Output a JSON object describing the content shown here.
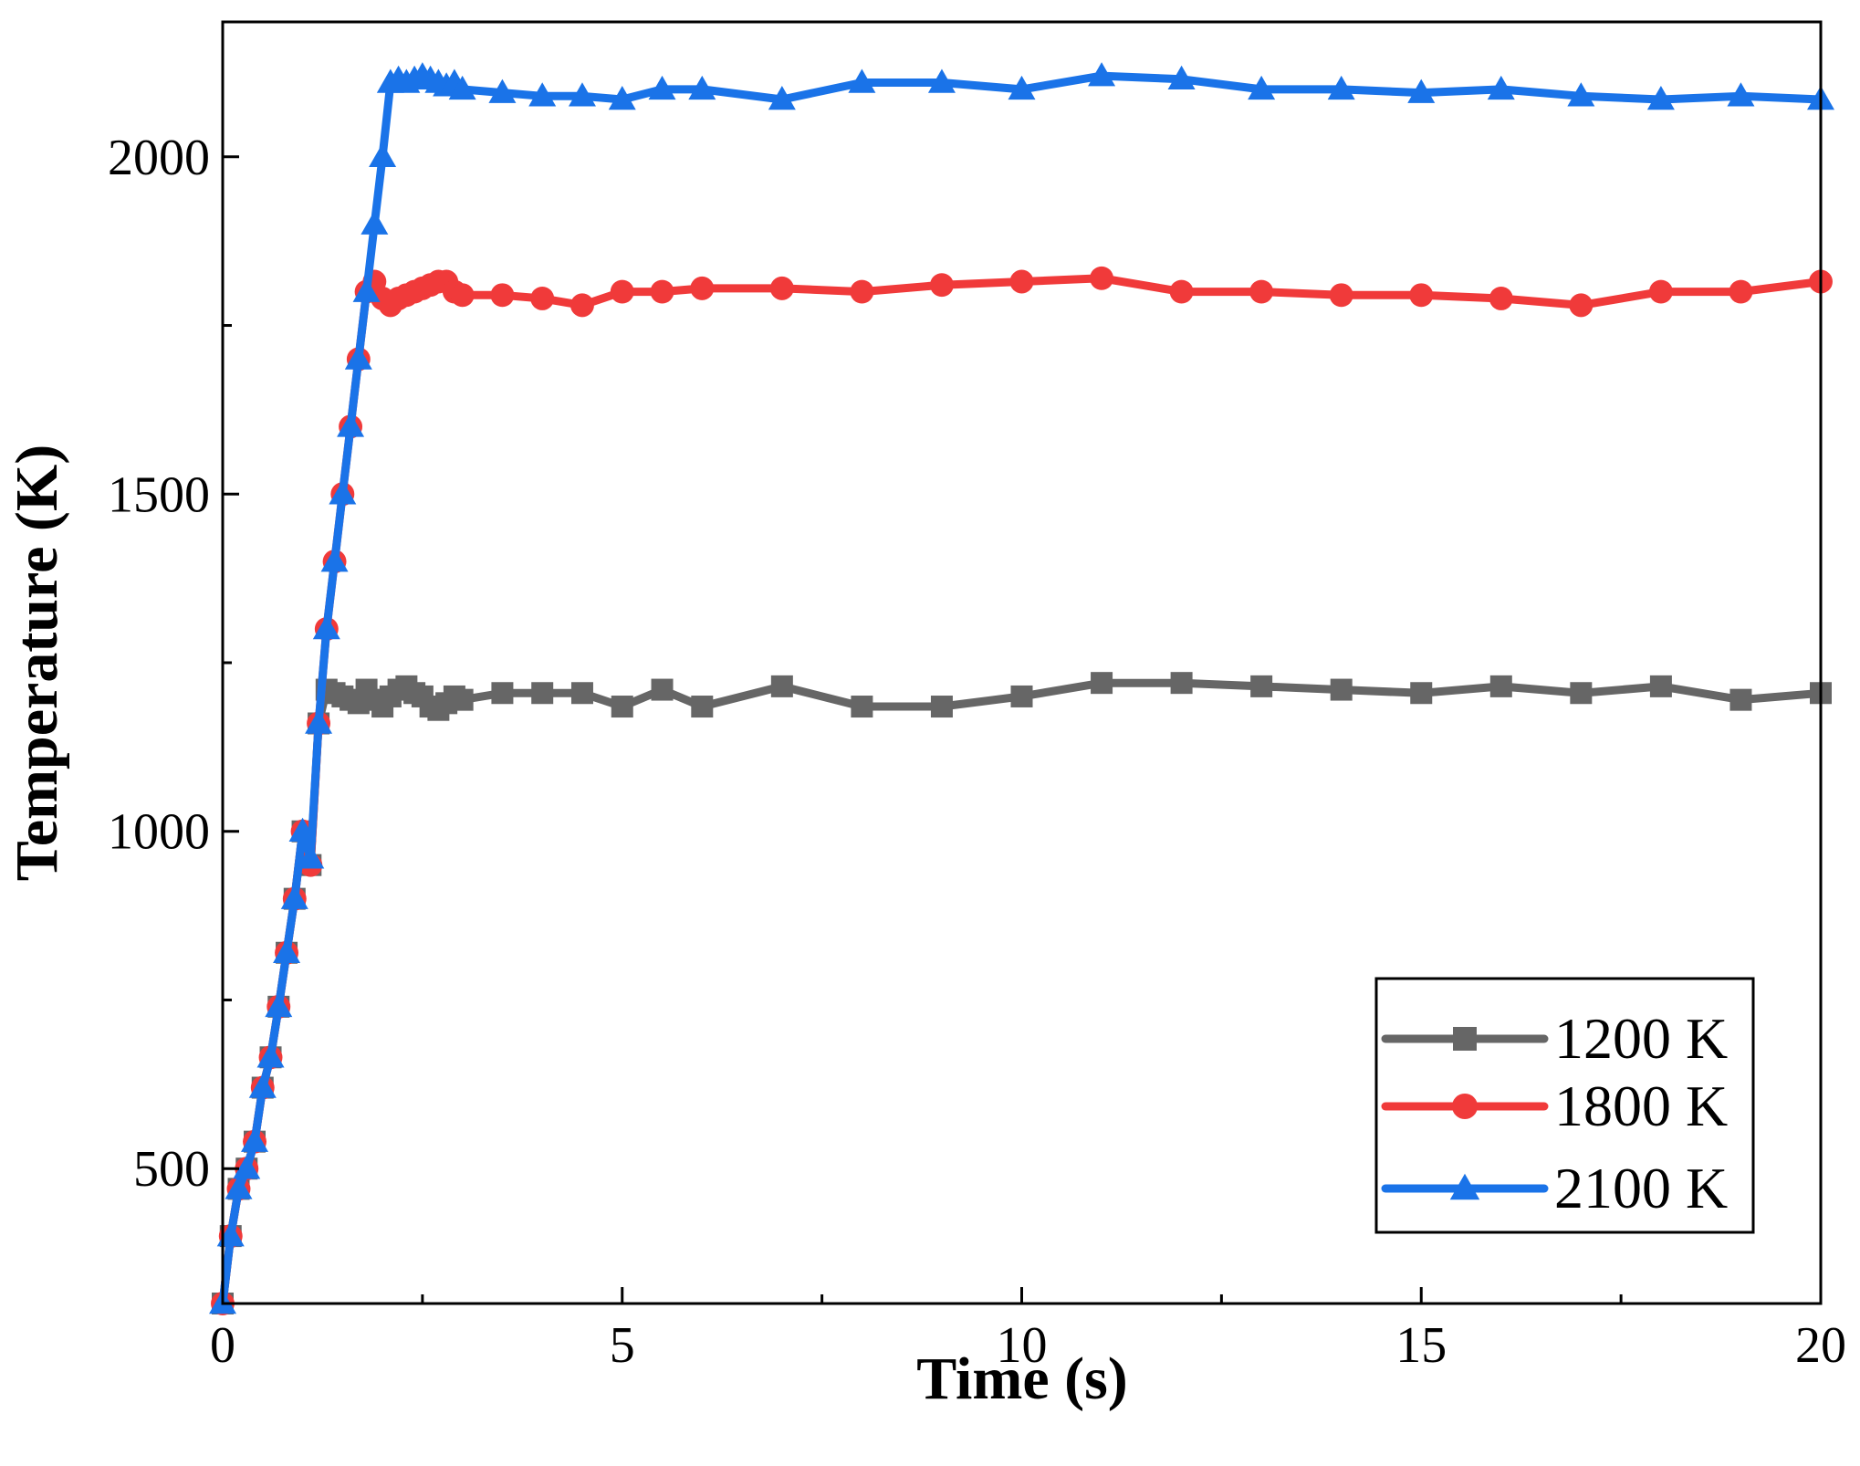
{
  "chart_data": {
    "type": "line",
    "title": "",
    "xlabel": "Time (s)",
    "ylabel": "Temperature (K)",
    "xlim": [
      0,
      20
    ],
    "ylim": [
      300,
      2200
    ],
    "xticks": [
      0,
      5,
      10,
      15,
      20
    ],
    "xtick_labels": [
      "0",
      "5",
      "10",
      "15",
      "20"
    ],
    "yticks": [
      500,
      1000,
      1500,
      2000
    ],
    "ytick_labels": [
      "500",
      "1000",
      "1500",
      "2000"
    ],
    "grid": false,
    "legend_position": "bottom-right",
    "series": [
      {
        "name": "1200 K",
        "color": "#666666",
        "marker": "square",
        "x": [
          0,
          0.1,
          0.2,
          0.3,
          0.4,
          0.5,
          0.6,
          0.7,
          0.8,
          0.9,
          1.0,
          1.1,
          1.2,
          1.3,
          1.4,
          1.5,
          1.6,
          1.7,
          1.8,
          1.9,
          2.0,
          2.1,
          2.2,
          2.3,
          2.4,
          2.5,
          2.6,
          2.7,
          2.8,
          2.9,
          3.0,
          3.5,
          4.0,
          4.5,
          5.0,
          5.5,
          6.0,
          7.0,
          8.0,
          9.0,
          10.0,
          11.0,
          12.0,
          13.0,
          14.0,
          15.0,
          16.0,
          17.0,
          18.0,
          19.0,
          20.0
        ],
        "values": [
          300,
          400,
          470,
          500,
          540,
          620,
          665,
          740,
          820,
          900,
          1000,
          950,
          1160,
          1210,
          1205,
          1200,
          1195,
          1190,
          1210,
          1195,
          1185,
          1200,
          1210,
          1215,
          1205,
          1200,
          1185,
          1180,
          1190,
          1200,
          1195,
          1205,
          1205,
          1205,
          1185,
          1210,
          1185,
          1215,
          1185,
          1185,
          1200,
          1220,
          1220,
          1215,
          1210,
          1205,
          1215,
          1205,
          1215,
          1195,
          1205
        ]
      },
      {
        "name": "1800 K",
        "color": "#f03a3a",
        "marker": "circle",
        "x": [
          0,
          0.1,
          0.2,
          0.3,
          0.4,
          0.5,
          0.6,
          0.7,
          0.8,
          0.9,
          1.0,
          1.1,
          1.2,
          1.3,
          1.4,
          1.5,
          1.6,
          1.7,
          1.8,
          1.9,
          2.0,
          2.1,
          2.2,
          2.3,
          2.4,
          2.5,
          2.6,
          2.7,
          2.8,
          2.9,
          3.0,
          3.5,
          4.0,
          4.5,
          5.0,
          5.5,
          6.0,
          7.0,
          8.0,
          9.0,
          10.0,
          11.0,
          12.0,
          13.0,
          14.0,
          15.0,
          16.0,
          17.0,
          18.0,
          19.0,
          20.0
        ],
        "values": [
          300,
          400,
          470,
          500,
          540,
          620,
          665,
          740,
          820,
          900,
          1000,
          950,
          1160,
          1300,
          1400,
          1500,
          1600,
          1700,
          1800,
          1815,
          1790,
          1780,
          1790,
          1795,
          1800,
          1805,
          1810,
          1815,
          1815,
          1800,
          1795,
          1795,
          1790,
          1780,
          1800,
          1800,
          1805,
          1805,
          1800,
          1810,
          1815,
          1820,
          1800,
          1800,
          1795,
          1795,
          1790,
          1780,
          1800,
          1800,
          1815
        ]
      },
      {
        "name": "2100 K",
        "color": "#1a73e8",
        "marker": "triangle",
        "x": [
          0,
          0.1,
          0.2,
          0.3,
          0.4,
          0.5,
          0.6,
          0.7,
          0.8,
          0.9,
          1.0,
          1.1,
          1.2,
          1.3,
          1.4,
          1.5,
          1.6,
          1.7,
          1.8,
          1.9,
          2.0,
          2.1,
          2.2,
          2.3,
          2.4,
          2.5,
          2.6,
          2.7,
          2.8,
          2.9,
          3.0,
          3.5,
          4.0,
          4.5,
          5.0,
          5.5,
          6.0,
          7.0,
          8.0,
          9.0,
          10.0,
          11.0,
          12.0,
          13.0,
          14.0,
          15.0,
          16.0,
          17.0,
          18.0,
          19.0,
          20.0
        ],
        "values": [
          300,
          400,
          470,
          500,
          540,
          620,
          665,
          740,
          820,
          900,
          1000,
          960,
          1160,
          1300,
          1400,
          1500,
          1600,
          1700,
          1800,
          1900,
          2000,
          2110,
          2115,
          2110,
          2115,
          2120,
          2115,
          2110,
          2105,
          2110,
          2100,
          2095,
          2090,
          2090,
          2085,
          2100,
          2100,
          2085,
          2110,
          2110,
          2100,
          2120,
          2115,
          2100,
          2100,
          2095,
          2100,
          2090,
          2085,
          2090,
          2085
        ]
      }
    ]
  }
}
